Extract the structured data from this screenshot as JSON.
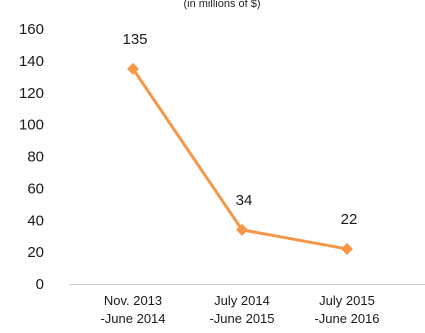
{
  "chart_data": {
    "type": "line",
    "subtitle": "(in millions of $)",
    "categories": [
      [
        "Nov. 2013",
        "-June 2014"
      ],
      [
        "July 2014",
        "-June 2015"
      ],
      [
        "July 2015",
        "-June 2016"
      ]
    ],
    "values": [
      135,
      34,
      22
    ],
    "data_labels": [
      "135",
      "34",
      "22"
    ],
    "ylim": [
      0,
      160
    ],
    "yticks": [
      0,
      20,
      40,
      60,
      80,
      100,
      120,
      140,
      160
    ],
    "grid": false,
    "legend": "none",
    "line_color": "#f79646"
  }
}
